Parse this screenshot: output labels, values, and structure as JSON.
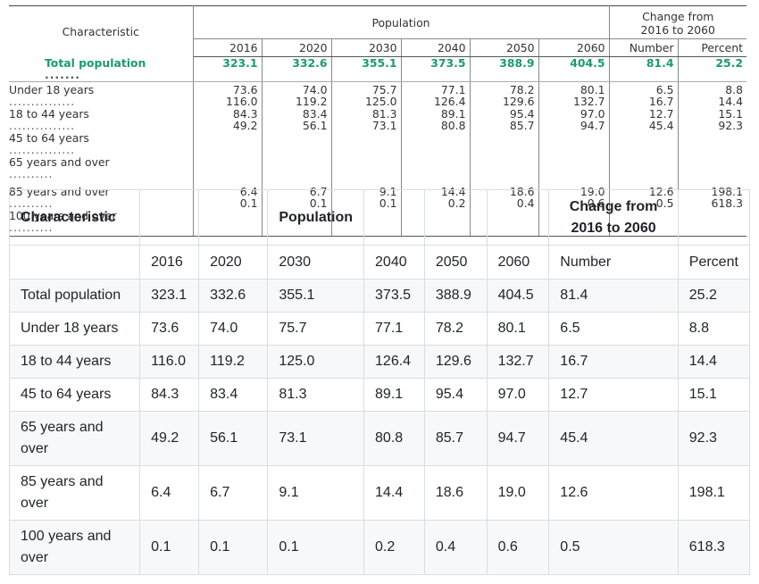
{
  "years": [
    "2016",
    "2020",
    "2030",
    "2040",
    "2050",
    "2060"
  ],
  "top_table": {
    "characteristic_header": "Characteristic",
    "population_header": "Population",
    "change_header_line1": "Change from",
    "change_header_line2": "2016 to 2060",
    "number_header": "Number",
    "percent_header": "Percent",
    "total": {
      "label": "Total population",
      "values": [
        "323.1",
        "332.6",
        "355.1",
        "373.5",
        "388.9",
        "404.5",
        "81.4",
        "25.2"
      ]
    },
    "group1": [
      {
        "label": "Under 18 years",
        "values": [
          "73.6",
          "74.0",
          "75.7",
          "77.1",
          "78.2",
          "80.1",
          "6.5",
          "8.8"
        ]
      },
      {
        "label": "18 to 44 years",
        "values": [
          "116.0",
          "119.2",
          "125.0",
          "126.4",
          "129.6",
          "132.7",
          "16.7",
          "14.4"
        ]
      },
      {
        "label": "45 to 64 years",
        "values": [
          "84.3",
          "83.4",
          "81.3",
          "89.1",
          "95.4",
          "97.0",
          "12.7",
          "15.1"
        ]
      },
      {
        "label": "65 years and over",
        "values": [
          "49.2",
          "56.1",
          "73.1",
          "80.8",
          "85.7",
          "94.7",
          "45.4",
          "92.3"
        ]
      }
    ],
    "group2": [
      {
        "label": "85 years and over",
        "values": [
          "6.4",
          "6.7",
          "9.1",
          "14.4",
          "18.6",
          "19.0",
          "12.6",
          "198.1"
        ]
      },
      {
        "label": "100 years and over",
        "values": [
          "0.1",
          "0.1",
          "0.1",
          "0.2",
          "0.4",
          "0.6",
          "0.5",
          "618.3"
        ]
      }
    ]
  },
  "bottom_table": {
    "characteristic_header": "Characteristic",
    "population_header": "Population",
    "change_header_line1": "Change from",
    "change_header_line2": "2016 to 2060",
    "number_header": "Number",
    "percent_header": "Percent",
    "rows": [
      {
        "label": "Total population",
        "values": [
          "323.1",
          "332.6",
          "355.1",
          "373.5",
          "388.9",
          "404.5",
          "81.4",
          "25.2"
        ]
      },
      {
        "label": "Under 18 years",
        "values": [
          "73.6",
          "74.0",
          "75.7",
          "77.1",
          "78.2",
          "80.1",
          "6.5",
          "8.8"
        ]
      },
      {
        "label": "18 to 44 years",
        "values": [
          "116.0",
          "119.2",
          "125.0",
          "126.4",
          "129.6",
          "132.7",
          "16.7",
          "14.4"
        ]
      },
      {
        "label": "45 to 64 years",
        "values": [
          "84.3",
          "83.4",
          "81.3",
          "89.1",
          "95.4",
          "97.0",
          "12.7",
          "15.1"
        ]
      },
      {
        "label": "65 years and over",
        "values": [
          "49.2",
          "56.1",
          "73.1",
          "80.8",
          "85.7",
          "94.7",
          "45.4",
          "92.3"
        ]
      },
      {
        "label": "85 years and over",
        "values": [
          "6.4",
          "6.7",
          "9.1",
          "14.4",
          "18.6",
          "19.0",
          "12.6",
          "198.1"
        ]
      },
      {
        "label": "100 years and over",
        "values": [
          "0.1",
          "0.1",
          "0.1",
          "0.2",
          "0.4",
          "0.6",
          "0.5",
          "618.3"
        ]
      }
    ]
  },
  "colors": {
    "total_highlight": "#1a9a72",
    "row_alt": "#f6f8fa",
    "border": "#d8dee4"
  }
}
